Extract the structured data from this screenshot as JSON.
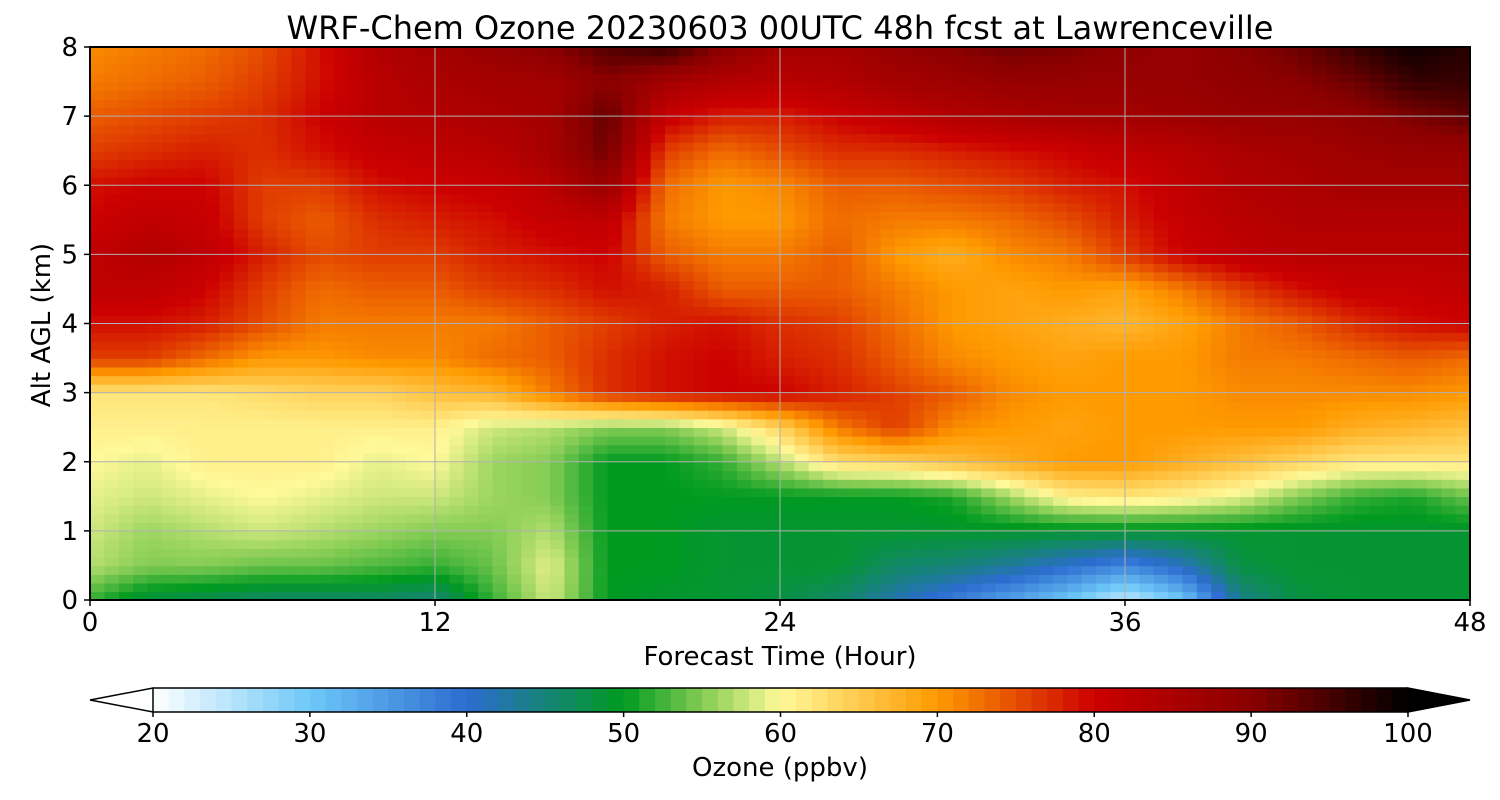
{
  "chart_data": {
    "type": "heatmap",
    "title": "WRF-Chem Ozone  20230603 00UTC 48h fcst at Lawrenceville",
    "xlabel": "Forecast Time (Hour)",
    "ylabel": "Alt AGL (km)",
    "xlim": [
      0,
      48
    ],
    "ylim": [
      0,
      8
    ],
    "x_ticks": [
      "0",
      "12",
      "24",
      "36",
      "48"
    ],
    "x_tick_values": [
      0,
      12,
      24,
      36,
      48
    ],
    "y_ticks": [
      "0",
      "1",
      "2",
      "3",
      "4",
      "5",
      "6",
      "7",
      "8"
    ],
    "y_tick_values": [
      0,
      1,
      2,
      3,
      4,
      5,
      6,
      7,
      8
    ],
    "grid": true,
    "colorbar": {
      "label": "Ozone  (ppbv)",
      "range": [
        20,
        100
      ],
      "extend": "both",
      "ticks": [
        "20",
        "30",
        "40",
        "50",
        "60",
        "70",
        "80",
        "90",
        "100"
      ],
      "tick_values": [
        20,
        30,
        40,
        50,
        60,
        70,
        80,
        90,
        100
      ],
      "colors": {
        "20": "#ffffff",
        "30": "#6ec8f8",
        "40": "#2c6cd0",
        "50": "#009a20",
        "55": "#84cc54",
        "60": "#fff99a",
        "70": "#ff9a00",
        "80": "#cc0000",
        "90": "#8a0000",
        "100": "#000000"
      }
    },
    "series": [],
    "z_units": "ppbv",
    "x": [
      0,
      2,
      4,
      6,
      8,
      10,
      12,
      14,
      16,
      18,
      20,
      22,
      24,
      26,
      28,
      30,
      32,
      34,
      36,
      38,
      40,
      42,
      44,
      46,
      48
    ],
    "y": [
      0,
      0.5,
      1,
      1.5,
      2,
      2.5,
      3,
      3.5,
      4,
      4.5,
      5,
      5.5,
      6,
      6.5,
      7,
      7.5,
      8
    ],
    "z": [
      [
        52,
        48,
        47,
        46,
        46,
        46,
        45,
        52,
        58,
        50,
        49,
        49,
        48,
        46,
        42,
        38,
        34,
        30,
        24,
        30,
        44,
        48,
        49,
        49,
        49
      ],
      [
        57,
        55,
        55,
        54,
        54,
        53,
        52,
        54,
        59,
        50,
        50,
        49,
        49,
        49,
        46,
        45,
        43,
        40,
        37,
        41,
        48,
        49,
        49,
        49,
        49
      ],
      [
        58,
        56,
        57,
        58,
        57,
        56,
        55,
        55,
        57,
        50,
        50,
        49,
        49,
        49,
        49,
        49,
        49,
        49,
        49,
        49,
        49,
        49,
        49,
        49,
        49
      ],
      [
        59,
        58,
        59,
        60,
        59,
        58,
        58,
        56,
        55,
        50,
        50,
        50,
        50,
        50,
        50,
        51,
        56,
        61,
        62,
        61,
        59,
        55,
        52,
        51,
        54
      ],
      [
        60,
        59,
        61,
        61,
        61,
        59,
        60,
        56,
        55,
        50,
        50,
        52,
        57,
        63,
        64,
        66,
        68,
        70,
        70,
        68,
        66,
        64,
        62,
        62,
        62
      ],
      [
        61,
        61,
        61,
        61,
        61,
        61,
        61,
        58,
        57,
        55,
        55,
        58,
        64,
        72,
        76,
        71,
        70,
        69,
        70,
        70,
        70,
        70,
        68,
        67,
        66
      ],
      [
        62,
        62,
        62,
        63,
        64,
        64,
        66,
        67,
        72,
        77,
        79,
        80,
        80,
        78,
        76,
        74,
        71,
        70,
        70,
        70,
        71,
        71,
        71,
        71,
        70
      ],
      [
        76,
        76,
        73,
        70,
        70,
        71,
        71,
        73,
        74,
        77,
        79,
        80,
        78,
        77,
        74,
        71,
        70,
        69,
        70,
        70,
        72,
        72,
        73,
        74,
        73
      ],
      [
        79,
        79,
        78,
        75,
        72,
        72,
        72,
        72,
        74,
        76,
        78,
        79,
        77,
        76,
        73,
        70,
        69,
        68,
        67,
        69,
        72,
        74,
        77,
        79,
        80
      ],
      [
        82,
        82,
        80,
        76,
        73,
        74,
        74,
        76,
        77,
        79,
        78,
        74,
        74,
        74,
        72,
        70,
        69,
        70,
        69,
        72,
        76,
        79,
        81,
        81,
        82
      ],
      [
        82,
        84,
        82,
        78,
        75,
        76,
        76,
        78,
        79,
        80,
        74,
        72,
        72,
        74,
        70,
        68,
        71,
        72,
        76,
        80,
        82,
        83,
        83,
        83,
        83
      ],
      [
        80,
        82,
        81,
        76,
        74,
        77,
        78,
        79,
        81,
        82,
        72,
        70,
        70,
        73,
        72,
        72,
        73,
        75,
        78,
        81,
        83,
        84,
        84,
        84,
        84
      ],
      [
        79,
        80,
        80,
        76,
        76,
        79,
        80,
        81,
        83,
        88,
        73,
        70,
        71,
        74,
        74,
        75,
        76,
        78,
        79,
        82,
        84,
        85,
        86,
        86,
        86
      ],
      [
        76,
        77,
        78,
        77,
        79,
        81,
        82,
        83,
        86,
        92,
        76,
        73,
        75,
        77,
        77,
        78,
        79,
        80,
        82,
        83,
        85,
        86,
        87,
        88,
        88
      ],
      [
        74,
        75,
        76,
        77,
        80,
        83,
        84,
        85,
        86,
        93,
        81,
        78,
        78,
        80,
        82,
        84,
        85,
        86,
        86,
        87,
        88,
        88,
        89,
        91,
        93
      ],
      [
        72,
        73,
        74,
        76,
        79,
        83,
        85,
        86,
        86,
        90,
        86,
        84,
        83,
        84,
        86,
        87,
        88,
        88,
        88,
        88,
        89,
        90,
        92,
        96,
        96
      ],
      [
        71,
        72,
        73,
        75,
        79,
        84,
        86,
        88,
        90,
        94,
        96,
        90,
        86,
        86,
        88,
        90,
        92,
        91,
        89,
        88,
        90,
        92,
        96,
        99,
        97
      ]
    ]
  }
}
